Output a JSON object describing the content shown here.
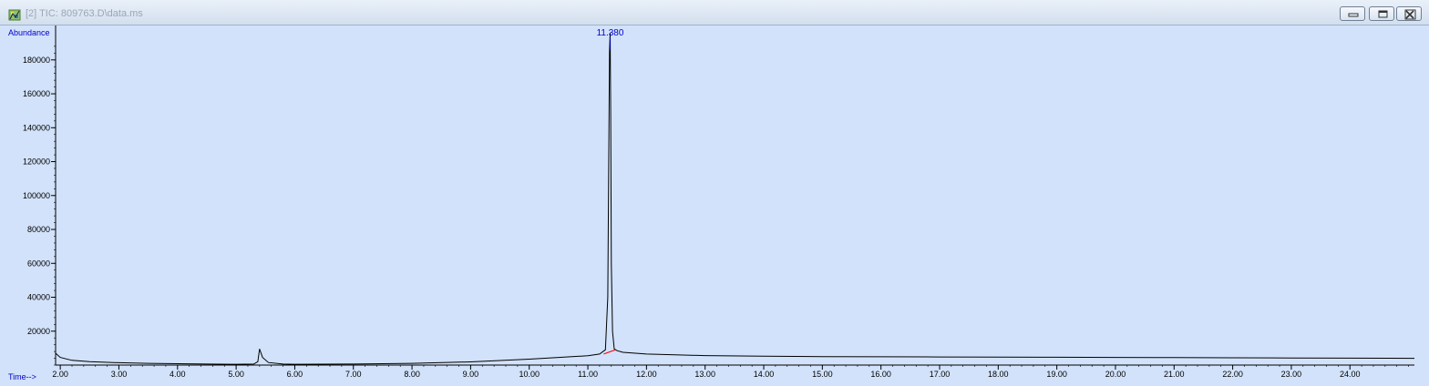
{
  "window": {
    "title": "[2] TIC: 809763.D\\data.ms",
    "icon": "chromatogram-app-icon",
    "buttons": [
      "minimize-icon",
      "restore-icon",
      "close-icon"
    ]
  },
  "colors": {
    "plot_background": "#d2e2fa",
    "trace": "#000000",
    "axis_label": "#0000cc",
    "peak_label": "#0000cc",
    "baseline_marker": "#ff0000"
  },
  "chart_data": {
    "type": "line",
    "title": "",
    "ylabel": "Abundance",
    "xlabel": "Time-->",
    "xlim": [
      1.92,
      25.1
    ],
    "ylim": [
      0,
      196000
    ],
    "x_ticks": [
      "2.00",
      "3.00",
      "4.00",
      "5.00",
      "6.00",
      "7.00",
      "8.00",
      "9.00",
      "10.00",
      "11.00",
      "12.00",
      "13.00",
      "14.00",
      "15.00",
      "16.00",
      "17.00",
      "18.00",
      "19.00",
      "20.00",
      "21.00",
      "22.00",
      "23.00",
      "24.00"
    ],
    "y_ticks": [
      "20000",
      "40000",
      "60000",
      "80000",
      "100000",
      "120000",
      "140000",
      "160000",
      "180000"
    ],
    "grid": false,
    "legend": "none",
    "peak_annotations": [
      {
        "label": "11.380",
        "x": 11.38,
        "y": 196000
      }
    ],
    "series": [
      {
        "x": [
          1.92,
          2.0,
          2.2,
          2.5,
          3.0,
          3.5,
          4.0,
          4.5,
          5.0,
          5.3,
          5.37,
          5.4,
          5.45,
          5.55,
          5.8,
          6.0,
          7.0,
          8.0,
          9.0,
          10.0,
          10.5,
          11.0,
          11.2,
          11.3,
          11.34,
          11.36,
          11.37,
          11.38,
          11.39,
          11.4,
          11.42,
          11.45,
          11.5,
          11.6,
          12.0,
          13.0,
          14.0,
          15.0,
          16.0,
          17.0,
          18.0,
          19.0,
          20.0,
          21.0,
          22.0,
          23.0,
          24.0,
          25.1
        ],
        "y": [
          7000,
          4500,
          2800,
          2000,
          1400,
          1000,
          800,
          600,
          500,
          600,
          2000,
          9500,
          4500,
          1500,
          600,
          500,
          600,
          1000,
          1900,
          3500,
          4500,
          5500,
          6500,
          9000,
          40000,
          140000,
          185000,
          196000,
          150000,
          60000,
          20000,
          9500,
          8500,
          7500,
          6500,
          5600,
          5200,
          5000,
          4900,
          4800,
          4700,
          4600,
          4500,
          4400,
          4300,
          4200,
          4100,
          4000
        ]
      }
    ]
  }
}
